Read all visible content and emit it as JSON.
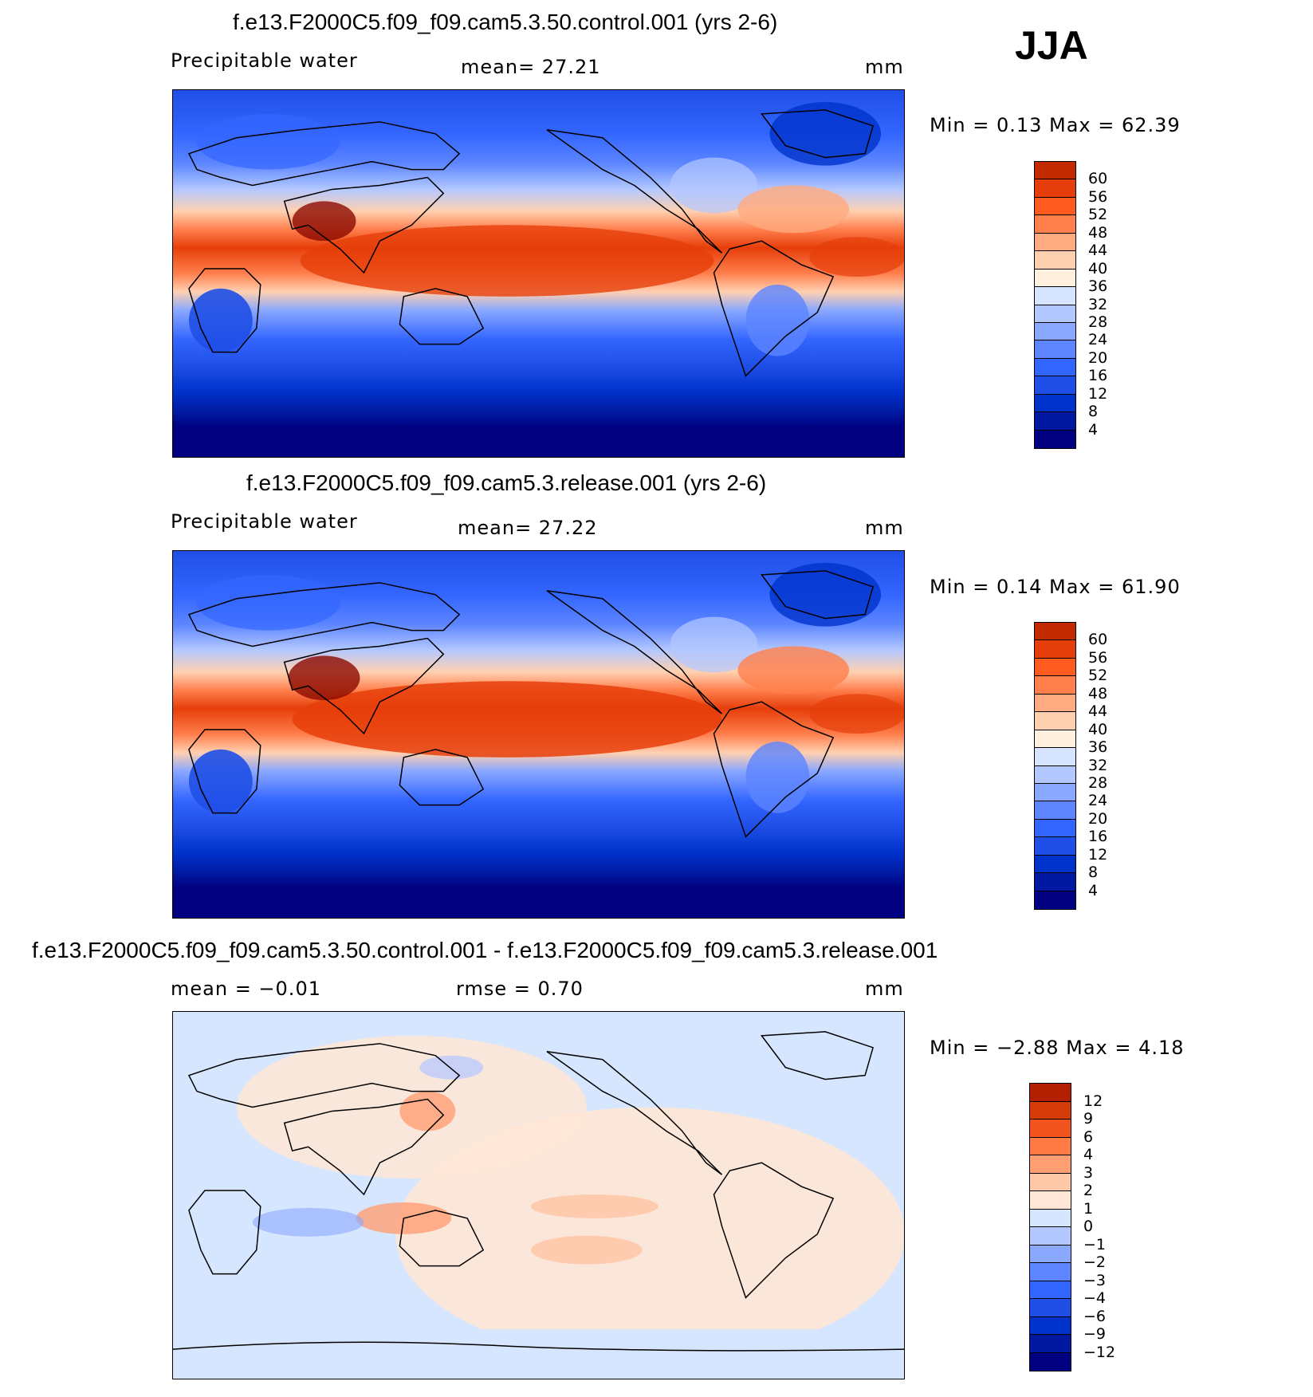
{
  "season": "JJA",
  "colors": {
    "abs_scale": [
      "#000080",
      "#0019A0",
      "#0033CC",
      "#1F4FE6",
      "#3366FF",
      "#5C85FF",
      "#8AA8FF",
      "#B3C8FF",
      "#D6E4FF",
      "#FFF0E0",
      "#FFD0B0",
      "#FFAA80",
      "#FF7F4D",
      "#FF5A1F",
      "#E63E0A",
      "#C22A00",
      "#8C0A00"
    ],
    "diff_scale": [
      "#000080",
      "#0019A0",
      "#0033CC",
      "#1F4FE6",
      "#3366FF",
      "#5C85FF",
      "#8AA8FF",
      "#B3C8FF",
      "#D6E6FF",
      "#FFE6D6",
      "#FFC8A8",
      "#FF9F73",
      "#FF7A45",
      "#F25420",
      "#D63B0A",
      "#B22000",
      "#8C0A00"
    ],
    "land": "#1f55e0",
    "coast": "#000000"
  },
  "panels": [
    {
      "title": "f.e13.F2000C5.f09_f09.cam5.3.50.control.001 (yrs 2-6)",
      "left_label": "Precipitable  water",
      "mid_label": "mean=   27.21",
      "units": "mm",
      "minmax": "Min =    0.13  Max =   62.39",
      "colorbar_labels": [
        "60",
        "56",
        "52",
        "48",
        "44",
        "40",
        "36",
        "32",
        "28",
        "24",
        "20",
        "16",
        "12",
        "8",
        "4"
      ]
    },
    {
      "title": "f.e13.F2000C5.f09_f09.cam5.3.release.001 (yrs 2-6)",
      "left_label": "Precipitable  water",
      "mid_label": "mean=   27.22",
      "units": "mm",
      "minmax": "Min =    0.14  Max =   61.90",
      "colorbar_labels": [
        "60",
        "56",
        "52",
        "48",
        "44",
        "40",
        "36",
        "32",
        "28",
        "24",
        "20",
        "16",
        "12",
        "8",
        "4"
      ]
    },
    {
      "title": "f.e13.F2000C5.f09_f09.cam5.3.50.control.001 - f.e13.F2000C5.f09_f09.cam5.3.release.001",
      "left_label": "mean =   −0.01",
      "mid_label": "rmse =     0.70",
      "units": "mm",
      "minmax": "Min =   −2.88  Max =    4.18",
      "colorbar_labels": [
        "12",
        "9",
        "6",
        "4",
        "3",
        "2",
        "1",
        "0",
        "−1",
        "−2",
        "−3",
        "−4",
        "−6",
        "−9",
        "−12"
      ]
    }
  ]
}
